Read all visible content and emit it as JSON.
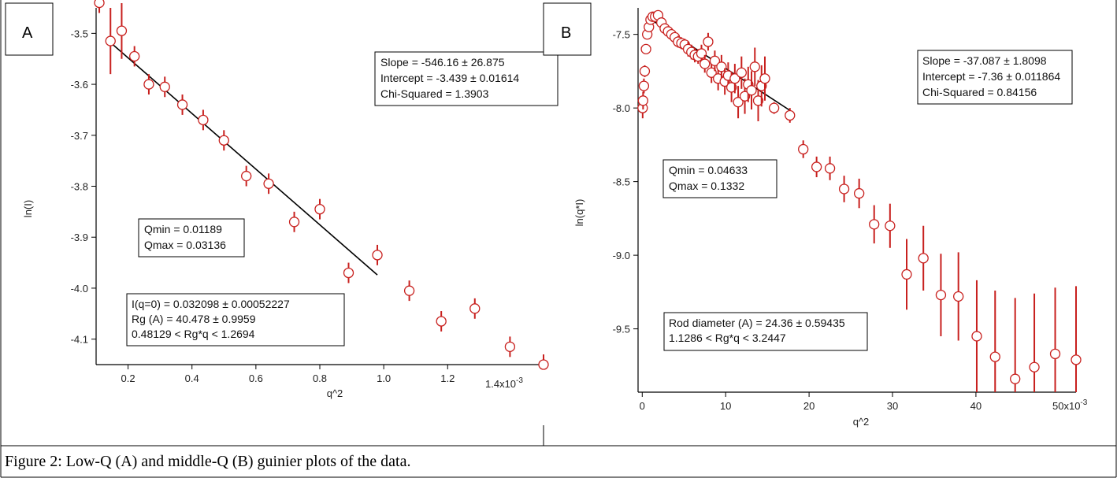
{
  "caption": "Figure 2: Low-Q (A) and middle-Q (B) guinier plots of the data.",
  "chart_data": [
    {
      "type": "scatter",
      "panel_label": "A",
      "xlabel": "q^2",
      "ylabel": "ln(I)",
      "xlim": [
        0.1,
        1.5
      ],
      "ylim": [
        -4.15,
        -3.45
      ],
      "x_units_multiplier_label": "1.4x10",
      "x_units_multiplier_exp": "-3",
      "xticks": [
        0.2,
        0.4,
        0.6,
        0.8,
        1.0,
        1.2
      ],
      "xticklabels": [
        "0.2",
        "0.4",
        "0.6",
        "0.8",
        "1.0",
        "1.2"
      ],
      "yticks": [
        -3.5,
        -3.6,
        -3.7,
        -3.8,
        -3.9,
        -4.0,
        -4.1
      ],
      "yticklabels": [
        "-3.5",
        "-3.6",
        "-3.7",
        "-3.8",
        "-3.9",
        "-4.0",
        "-4.1"
      ],
      "series": [
        {
          "x": [
            0.11,
            0.145,
            0.18,
            0.22,
            0.265,
            0.315,
            0.37,
            0.435,
            0.5,
            0.57,
            0.64,
            0.72,
            0.8,
            0.89,
            0.98,
            1.08,
            1.18,
            1.285,
            1.395,
            1.5
          ],
          "y": [
            -3.44,
            -3.515,
            -3.495,
            -3.545,
            -3.6,
            -3.605,
            -3.64,
            -3.67,
            -3.71,
            -3.78,
            -3.795,
            -3.87,
            -3.845,
            -3.97,
            -3.935,
            -4.005,
            -4.065,
            -4.04,
            -4.115,
            -4.15
          ],
          "err": [
            0.02,
            0.065,
            0.055,
            0.02,
            0.02,
            0.02,
            0.02,
            0.02,
            0.02,
            0.02,
            0.02,
            0.02,
            0.02,
            0.02,
            0.02,
            0.02,
            0.02,
            0.02,
            0.02,
            0.02
          ]
        }
      ],
      "fit_line": {
        "x": [
          0.145,
          0.98
        ],
        "y": [
          -3.518,
          -3.974
        ]
      },
      "annotations": {
        "fit_stats": [
          "Slope = -546.16 ± 26.875",
          "Intercept = -3.439 ± 0.01614",
          "Chi-Squared =  1.3903"
        ],
        "q_range": [
          "Qmin =  0.01189",
          "Qmax =  0.03136"
        ],
        "results": [
          "I(q=0) =  0.032098 ± 0.00052227",
          "Rg (A) = 40.478 ± 0.9959",
          "0.48129 < Rg*q < 1.2694"
        ]
      }
    },
    {
      "type": "scatter",
      "panel_label": "B",
      "xlabel": "q^2",
      "ylabel": "ln(q*I)",
      "xlim": [
        -0.5,
        52
      ],
      "ylim": [
        -9.93,
        -7.32
      ],
      "x_units_multiplier_label": "50x10",
      "x_units_multiplier_exp": "-3",
      "xticks": [
        0,
        10,
        20,
        30,
        40
      ],
      "xticklabels": [
        "0",
        "10",
        "20",
        "30",
        "40"
      ],
      "yticks": [
        -7.5,
        -8.0,
        -8.5,
        -9.0,
        -9.5
      ],
      "yticklabels": [
        "-7.5",
        "-8.0",
        "-8.5",
        "-9.0",
        "-9.5"
      ],
      "series": [
        {
          "x": [
            0.05,
            0.1,
            0.2,
            0.3,
            0.45,
            0.6,
            0.8,
            1.0,
            1.25,
            1.55,
            1.9,
            2.3,
            2.7,
            3.1,
            3.5,
            3.9,
            4.3,
            4.7,
            5.1,
            5.5,
            5.9,
            6.3,
            6.7,
            7.1,
            7.5,
            7.9,
            8.3,
            8.7,
            9.1,
            9.5,
            9.9,
            10.3,
            10.7,
            11.1,
            11.5,
            11.9,
            12.3,
            12.7,
            13.1,
            13.5,
            13.9,
            14.3,
            14.7,
            15.8,
            17.7,
            19.3,
            20.9,
            22.5,
            24.2,
            26.0,
            27.8,
            29.7,
            31.7,
            33.7,
            35.8,
            37.9,
            40.1,
            42.3,
            44.7,
            47.0,
            49.5,
            52.0
          ],
          "y": [
            -8.0,
            -7.95,
            -7.85,
            -7.75,
            -7.6,
            -7.5,
            -7.45,
            -7.4,
            -7.38,
            -7.38,
            -7.37,
            -7.42,
            -7.46,
            -7.48,
            -7.5,
            -7.52,
            -7.55,
            -7.56,
            -7.57,
            -7.6,
            -7.62,
            -7.64,
            -7.65,
            -7.63,
            -7.7,
            -7.55,
            -7.76,
            -7.68,
            -7.8,
            -7.72,
            -7.82,
            -7.78,
            -7.86,
            -7.8,
            -7.96,
            -7.76,
            -7.92,
            -7.84,
            -7.88,
            -7.72,
            -7.95,
            -7.85,
            -7.8,
            -8.0,
            -8.05,
            -8.28,
            -8.4,
            -8.41,
            -8.55,
            -8.58,
            -8.79,
            -8.8,
            -9.13,
            -9.02,
            -9.27,
            -9.28,
            -9.55,
            -9.69,
            -9.84,
            -9.76,
            -9.67,
            -9.71
          ],
          "err": [
            0.07,
            0.06,
            0.05,
            0.04,
            0.03,
            0.03,
            0.03,
            0.03,
            0.03,
            0.03,
            0.03,
            0.03,
            0.03,
            0.03,
            0.03,
            0.03,
            0.04,
            0.04,
            0.04,
            0.05,
            0.05,
            0.05,
            0.05,
            0.06,
            0.06,
            0.06,
            0.07,
            0.07,
            0.08,
            0.08,
            0.09,
            0.09,
            0.1,
            0.1,
            0.11,
            0.11,
            0.12,
            0.12,
            0.13,
            0.13,
            0.14,
            0.14,
            0.15,
            0.04,
            0.05,
            0.06,
            0.07,
            0.08,
            0.09,
            0.1,
            0.13,
            0.15,
            0.24,
            0.22,
            0.28,
            0.3,
            0.38,
            0.45,
            0.55,
            0.5,
            0.45,
            0.5
          ]
        }
      ],
      "fit_line": {
        "x": [
          0.8,
          17.8
        ],
        "y": [
          -7.39,
          -8.02
        ]
      },
      "annotations": {
        "fit_stats": [
          "Slope = -37.087 ± 1.8098",
          "Intercept = -7.36 ± 0.011864",
          "Chi-Squared =  0.84156"
        ],
        "q_range": [
          "Qmin =  0.04633",
          "Qmax =  0.1332"
        ],
        "results": [
          "Rod diameter (A) = 24.36 ± 0.59435",
          "1.1286 < Rg*q < 3.2447"
        ]
      }
    }
  ]
}
